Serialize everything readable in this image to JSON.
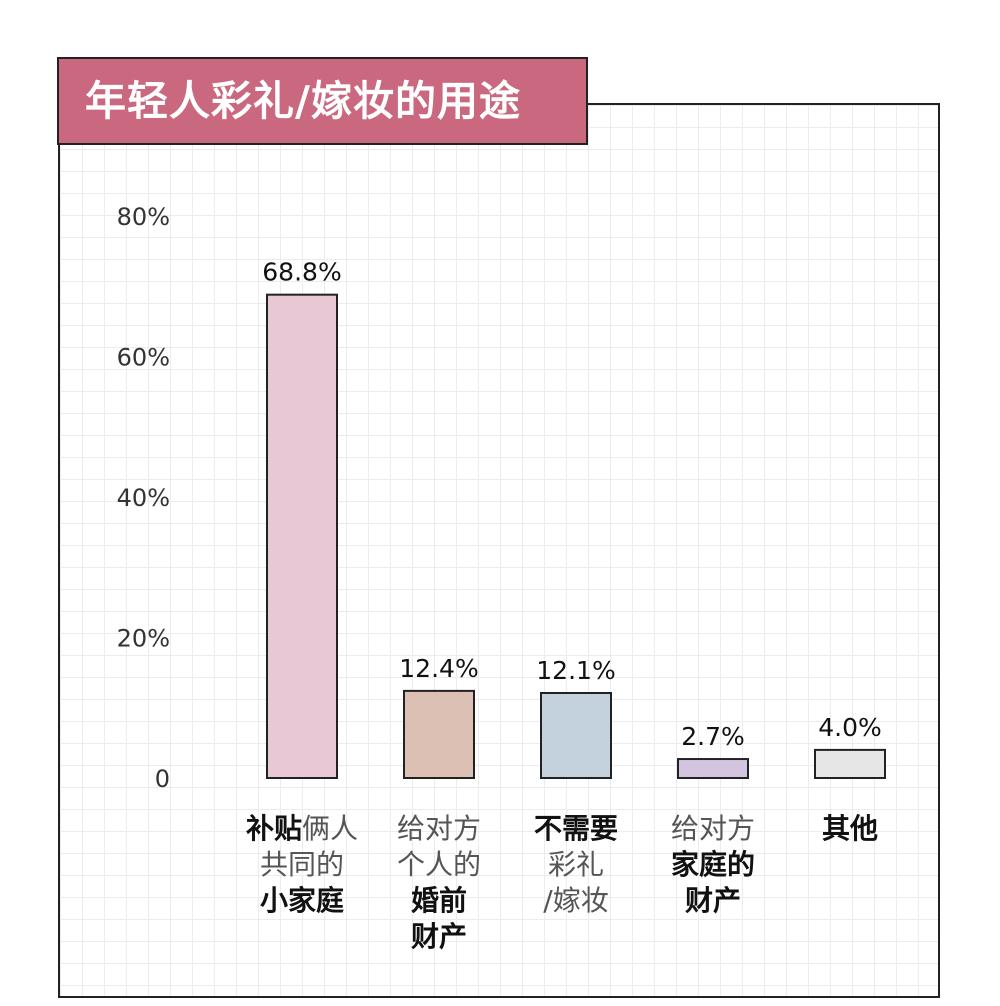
{
  "chart_data": {
    "type": "bar",
    "title": "年轻人彩礼/嫁妆的用途",
    "ylim": [
      0,
      80
    ],
    "yticks": [
      {
        "value": 0,
        "label": "0"
      },
      {
        "value": 20,
        "label": "20%"
      },
      {
        "value": 40,
        "label": "40%"
      },
      {
        "value": 60,
        "label": "60%"
      },
      {
        "value": 80,
        "label": "80%"
      }
    ],
    "categories": [
      "补贴俩人共同的小家庭",
      "给对方个人的婚前财产",
      "不需要彩礼/嫁妆",
      "给对方家庭的财产",
      "其他"
    ],
    "category_lines": [
      [
        [
          {
            "t": "补贴",
            "b": true
          },
          {
            "t": "俩人",
            "b": false
          }
        ],
        [
          {
            "t": "共同的",
            "b": false
          }
        ],
        [
          {
            "t": "小家庭",
            "b": true
          }
        ]
      ],
      [
        [
          {
            "t": "给对方",
            "b": false
          }
        ],
        [
          {
            "t": "个人的",
            "b": false
          }
        ],
        [
          {
            "t": "婚前",
            "b": true
          }
        ],
        [
          {
            "t": "财产",
            "b": true
          }
        ]
      ],
      [
        [
          {
            "t": "不需要",
            "b": true
          }
        ],
        [
          {
            "t": "彩礼",
            "b": false
          }
        ],
        [
          {
            "t": "/嫁妆",
            "b": false
          }
        ]
      ],
      [
        [
          {
            "t": "给对方",
            "b": false
          }
        ],
        [
          {
            "t": "家庭的",
            "b": true
          }
        ],
        [
          {
            "t": "财产",
            "b": true
          }
        ]
      ],
      [
        [
          {
            "t": "其他",
            "b": true
          }
        ]
      ]
    ],
    "values": [
      68.8,
      12.4,
      12.1,
      2.7,
      4.0
    ],
    "value_labels": [
      "68.8%",
      "12.4%",
      "12.1%",
      "2.7%",
      "4.0%"
    ],
    "colors": [
      "#e9c8d5",
      "#dcc0b3",
      "#c4d2dd",
      "#d3c5df",
      "#e6e6e6"
    ],
    "grid": true
  }
}
